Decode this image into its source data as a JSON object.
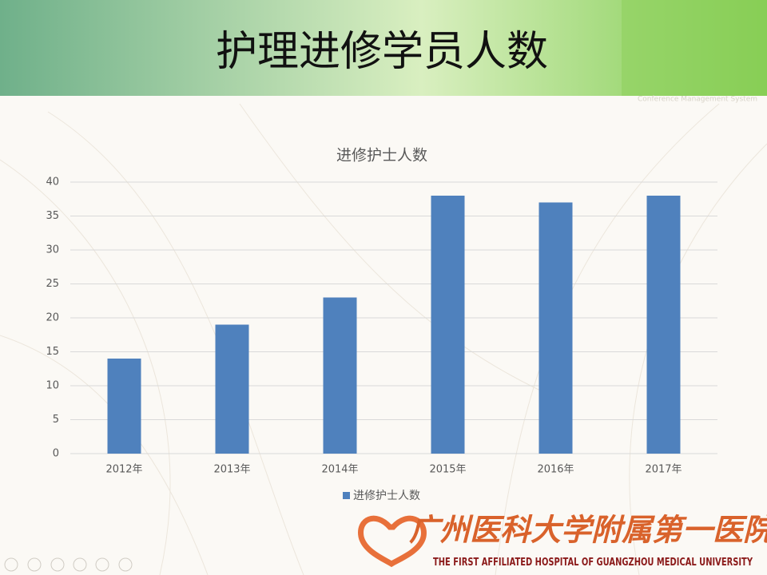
{
  "header": {
    "title": "护理进修学员人数",
    "watermark": "Conference Management System"
  },
  "chart_data": {
    "type": "bar",
    "title": "进修护士人数",
    "categories": [
      "2012年",
      "2013年",
      "2014年",
      "2015年",
      "2016年",
      "2017年"
    ],
    "series": [
      {
        "name": "进修护士人数",
        "color": "#4f81bd",
        "values": [
          14,
          19,
          23,
          38,
          37,
          38
        ]
      }
    ],
    "ylim": [
      0,
      40
    ],
    "yticks": [
      0,
      5,
      10,
      15,
      20,
      25,
      30,
      35,
      40
    ],
    "grid": true,
    "legend": "bottom"
  },
  "logo": {
    "name_cn": "广州医科大学附属第一医院",
    "name_en": "THE FIRST AFFILIATED HOSPITAL OF GUANGZHOU MEDICAL UNIVERSITY"
  }
}
